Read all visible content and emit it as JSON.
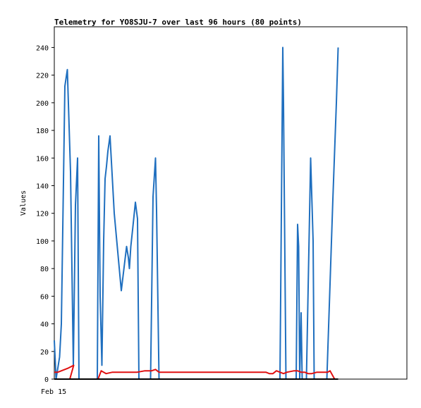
{
  "chart_data": {
    "type": "line",
    "title": "Telemetry for YO8SJU-7 over last 96 hours (80 points)",
    "ylabel": "Values",
    "xlabel": "",
    "x_tick_labels": [
      "Feb 15"
    ],
    "ylim": [
      0,
      255
    ],
    "y_ticks": [
      0,
      20,
      40,
      60,
      80,
      100,
      120,
      140,
      160,
      180,
      200,
      220,
      240
    ],
    "xlim": [
      0,
      100
    ],
    "grid": false,
    "colors": {
      "blue": "#1f6fbf",
      "red": "#e01010",
      "black": "#000000"
    },
    "series": [
      {
        "color": "#1f6fbf",
        "x": [
          0.0,
          0.5,
          1.5,
          2.0,
          3.0,
          3.7,
          4.6,
          5.4,
          6.0,
          6.6,
          7.0,
          7.4,
          8.0,
          9.0,
          10.0,
          11.0,
          12.2,
          12.6,
          13.0,
          13.5,
          14.0,
          14.4,
          14.8,
          15.2,
          15.8,
          17.0,
          19.0,
          20.5,
          21.0,
          21.3,
          21.7,
          22.2,
          23.0,
          23.6,
          24.0,
          24.8,
          25.8,
          27.3,
          28.0,
          28.7,
          29.0,
          29.7,
          64.0,
          64.8,
          65.0,
          65.7,
          68.6,
          69.0,
          69.3,
          69.6,
          70.0,
          70.3,
          70.8,
          71.5,
          72.7,
          73.4,
          73.7,
          74.4,
          76.0,
          77.3,
          79.0,
          80.0,
          80.5
        ],
        "y": [
          28,
          0,
          16,
          40,
          212,
          224,
          150,
          10,
          126,
          160,
          0,
          0,
          0,
          0,
          0,
          0,
          0,
          176,
          60,
          10,
          100,
          145,
          154,
          165,
          176,
          120,
          64,
          96,
          88,
          80,
          96,
          108,
          128,
          116,
          0,
          0,
          0,
          0,
          132,
          160,
          122,
          0,
          0,
          240,
          200,
          0,
          0,
          112,
          96,
          0,
          48,
          0,
          0,
          0,
          160,
          100,
          0,
          0,
          0,
          0,
          130,
          200,
          240
        ]
      },
      {
        "color": "#e01010",
        "x": [
          0.0,
          1.0,
          4.0,
          5.5,
          4.4,
          12.4,
          13.3,
          14.7,
          16.5,
          19.0,
          21.5,
          23.5,
          25.7,
          27.6,
          28.7,
          29.7,
          38.0,
          46.0,
          56.0,
          60.0,
          61.0,
          62.0,
          63.0,
          64.0,
          65.0,
          66.0,
          68.0,
          69.0,
          70.0,
          71.0,
          72.0,
          73.0,
          74.5,
          76.0,
          77.5,
          78.2,
          79.5
        ],
        "y": [
          5,
          5,
          8,
          10,
          0,
          0,
          6,
          4,
          5,
          5,
          5,
          5,
          6,
          6,
          7,
          5,
          5,
          5,
          5,
          5,
          4,
          4,
          6,
          5,
          4,
          5,
          6,
          6,
          5,
          5,
          4,
          4,
          5,
          5,
          5,
          6,
          0
        ]
      },
      {
        "color": "#000000",
        "x": [
          0.0,
          80.5
        ],
        "y": [
          0,
          0
        ]
      }
    ]
  }
}
